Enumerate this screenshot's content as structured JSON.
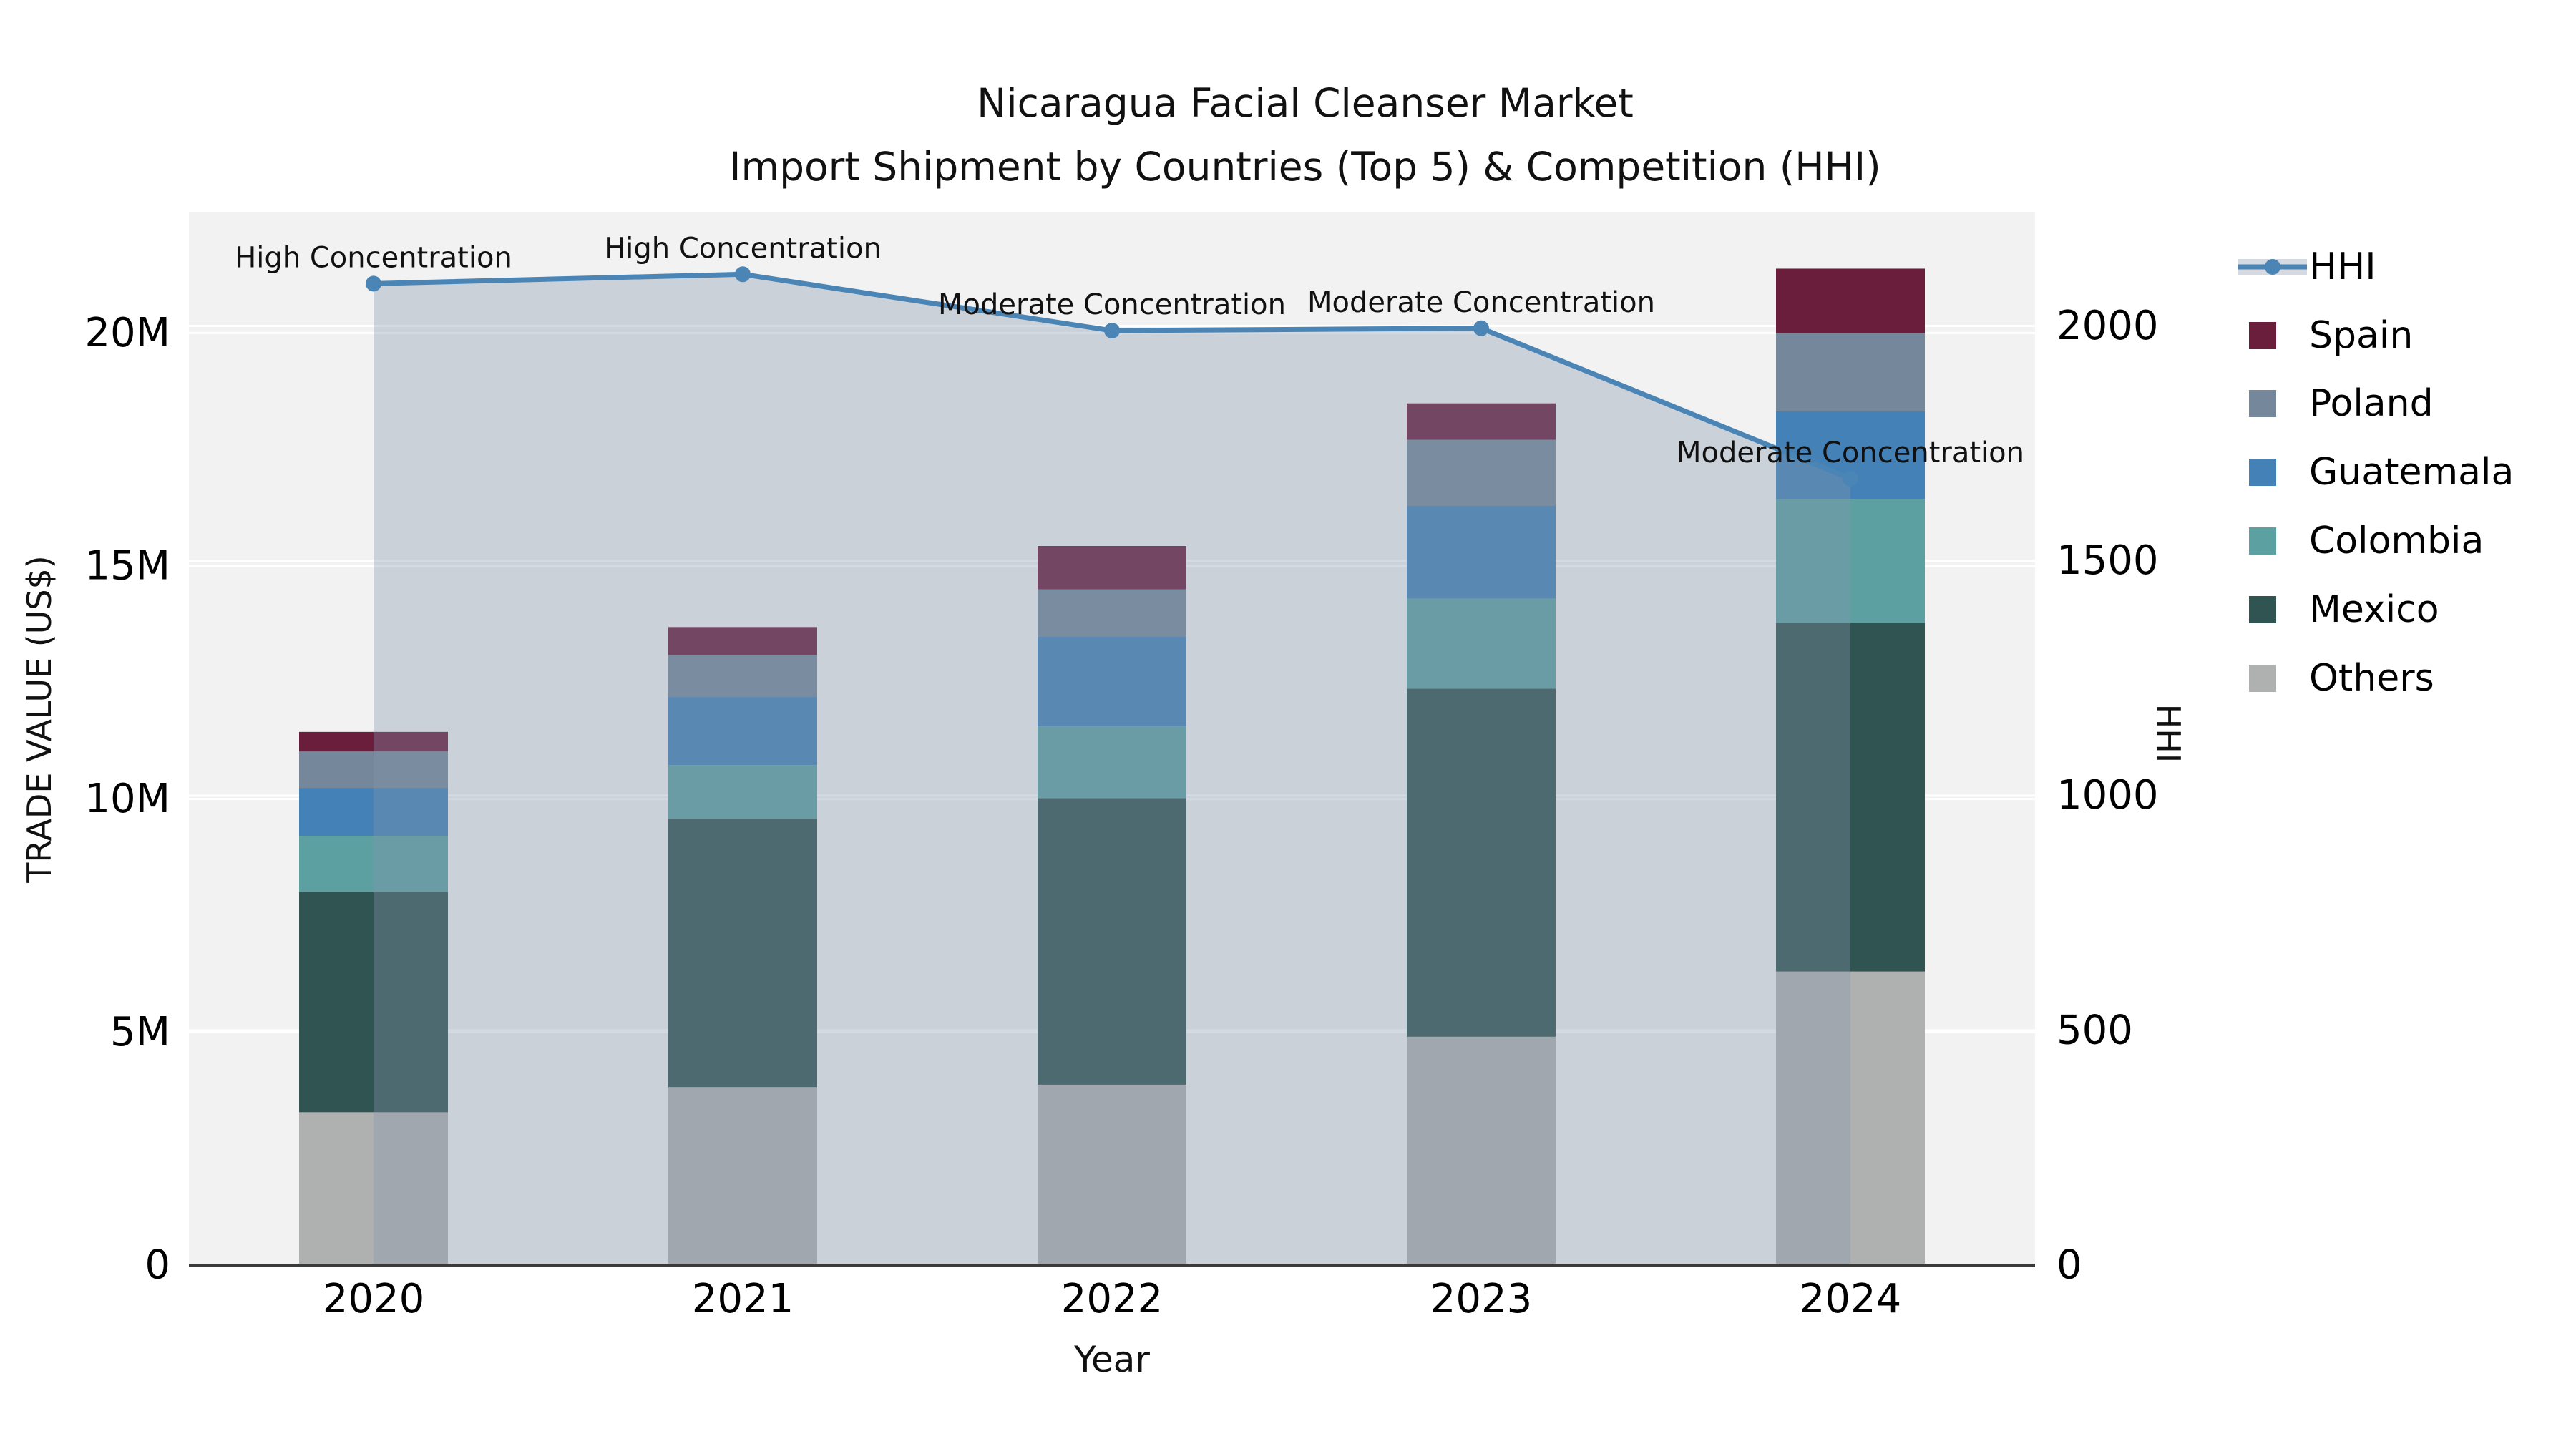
{
  "title": {
    "line1": "Nicaragua Facial Cleanser Market",
    "line2": "Import Shipment by Countries (Top 5) & Competition (HHI)"
  },
  "axes": {
    "x": {
      "label": "Year",
      "ticks": [
        "2020",
        "2021",
        "2022",
        "2023",
        "2024"
      ]
    },
    "y_left": {
      "label": "TRADE VALUE (US$)",
      "ticks": [
        "0",
        "5M",
        "10M",
        "15M",
        "20M"
      ],
      "tick_values": [
        0,
        5,
        10,
        15,
        20
      ]
    },
    "y_right": {
      "label": "HHI",
      "ticks": [
        "0",
        "500",
        "1000",
        "1500",
        "2000"
      ],
      "tick_values": [
        0,
        500,
        1000,
        1500,
        2000
      ]
    }
  },
  "legend": {
    "items": [
      {
        "label": "HHI",
        "type": "line",
        "color": "#4A85B5"
      },
      {
        "label": "Spain",
        "type": "swatch",
        "color": "#6B1D3C"
      },
      {
        "label": "Poland",
        "type": "swatch",
        "color": "#75879A"
      },
      {
        "label": "Guatemala",
        "type": "swatch",
        "color": "#4381B6"
      },
      {
        "label": "Colombia",
        "type": "swatch",
        "color": "#5CA0A2"
      },
      {
        "label": "Mexico",
        "type": "swatch",
        "color": "#305452"
      },
      {
        "label": "Others",
        "type": "swatch",
        "color": "#AFB1B0"
      }
    ]
  },
  "chart_data": {
    "type": "bar+line",
    "title": "Nicaragua Facial Cleanser Market — Import Shipment by Countries (Top 5) & Competition (HHI)",
    "categories": [
      "2020",
      "2021",
      "2022",
      "2023",
      "2024"
    ],
    "units": "US$ millions",
    "stack_order": [
      "Others",
      "Mexico",
      "Colombia",
      "Guatemala",
      "Poland",
      "Spain"
    ],
    "series": [
      {
        "name": "Spain",
        "color": "#6B1D3C",
        "values": [
          0.42,
          0.6,
          0.93,
          0.78,
          1.38
        ]
      },
      {
        "name": "Poland",
        "color": "#75879A",
        "values": [
          0.78,
          0.9,
          1.02,
          1.42,
          1.68
        ]
      },
      {
        "name": "Guatemala",
        "color": "#4381B6",
        "values": [
          1.03,
          1.46,
          1.92,
          1.99,
          1.88
        ]
      },
      {
        "name": "Colombia",
        "color": "#5CA0A2",
        "values": [
          1.2,
          1.15,
          1.54,
          1.93,
          2.66
        ]
      },
      {
        "name": "Mexico",
        "color": "#305452",
        "values": [
          4.73,
          5.76,
          6.15,
          7.47,
          7.48
        ]
      },
      {
        "name": "Others",
        "color": "#AFB1B0",
        "values": [
          3.28,
          3.82,
          3.87,
          4.9,
          6.3
        ]
      }
    ],
    "totals": [
      11.44,
      13.69,
      15.43,
      18.49,
      21.38
    ],
    "line": {
      "name": "HHI",
      "color": "#4A85B5",
      "marker_radius": 11,
      "area_fill": "#8594AB",
      "area_alpha": 0.35,
      "values": [
        2090,
        2110,
        1990,
        1995,
        1675
      ]
    },
    "annotations": [
      {
        "year": "2020",
        "text": "High Concentration"
      },
      {
        "year": "2021",
        "text": "High Concentration"
      },
      {
        "year": "2022",
        "text": "Moderate Concentration"
      },
      {
        "year": "2023",
        "text": "Moderate Concentration"
      },
      {
        "year": "2024",
        "text": "Moderate Concentration"
      }
    ],
    "ylim_left": [
      0,
      22.6
    ],
    "ylim_right": [
      0,
      2243
    ],
    "xlabel": "Year",
    "ylabel_left": "TRADE VALUE (US$)",
    "ylabel_right": "HHI",
    "grid": true,
    "legend_position": "right",
    "plot_background": "#F2F2F2",
    "grid_color": "#FFFFFF",
    "axis_line_color": "#3A3A3A"
  }
}
